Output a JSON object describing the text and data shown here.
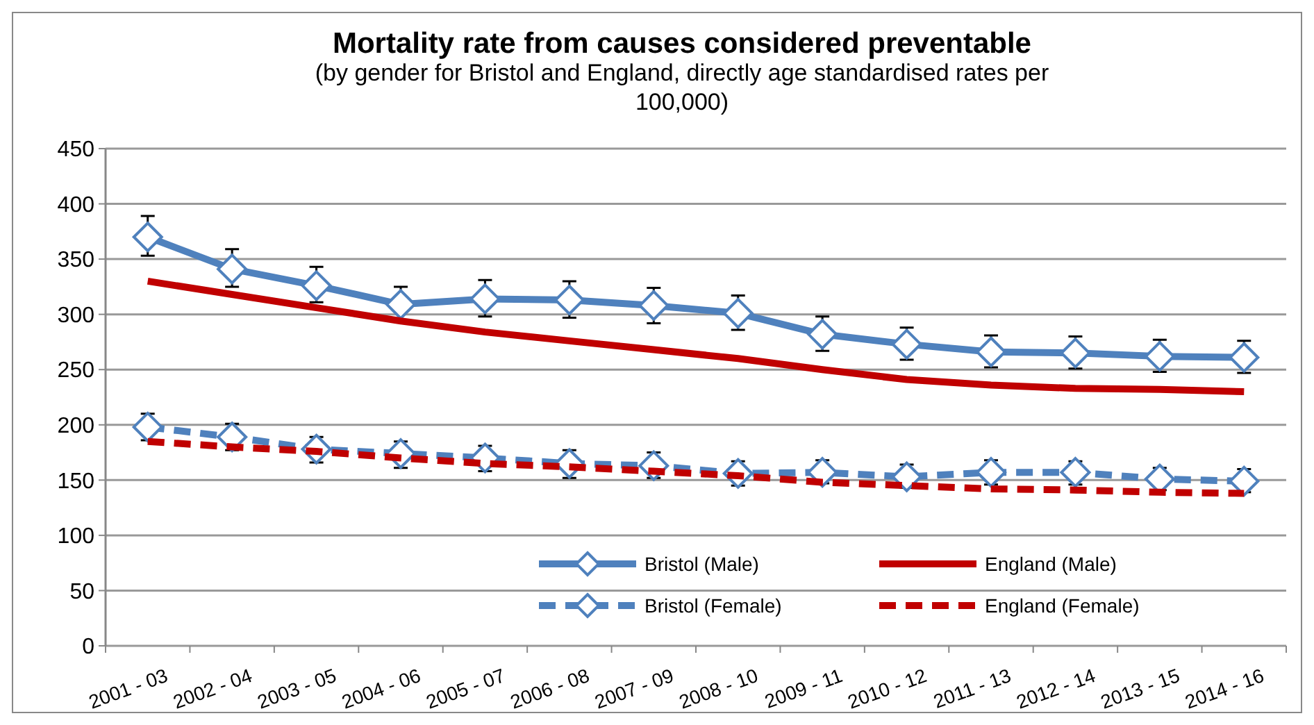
{
  "chart_data": {
    "type": "line",
    "title": "Mortality rate from causes considered preventable",
    "subtitle": "(by gender for Bristol and England, directly age standardised rates per 100,000)",
    "categories": [
      "2001 - 03",
      "2002 - 04",
      "2003 - 05",
      "2004 - 06",
      "2005 - 07",
      "2006 - 08",
      "2007 - 09",
      "2008 - 10",
      "2009 - 11",
      "2010 - 12",
      "2011 - 13",
      "2012 - 14",
      "2013 - 15",
      "2014 - 16"
    ],
    "ylim": [
      0,
      450
    ],
    "yticks": [
      0,
      50,
      100,
      150,
      200,
      250,
      300,
      350,
      400,
      450
    ],
    "grid": "y",
    "legend": "bottom right",
    "series": [
      {
        "name": "Bristol (Male)",
        "color": "#4f81bd",
        "marker": "diamond",
        "line_style": "solid",
        "values": [
          370,
          341,
          326,
          309,
          314,
          313,
          308,
          301,
          282,
          273,
          266,
          265,
          262,
          261
        ],
        "errors": [
          [
            353,
            389
          ],
          [
            325,
            359
          ],
          [
            311,
            343
          ],
          [
            293,
            325
          ],
          [
            298,
            331
          ],
          [
            297,
            330
          ],
          [
            292,
            324
          ],
          [
            286,
            317
          ],
          [
            267,
            298
          ],
          [
            259,
            288
          ],
          [
            252,
            281
          ],
          [
            251,
            280
          ],
          [
            248,
            277
          ],
          [
            247,
            276
          ]
        ]
      },
      {
        "name": "England (Male)",
        "color": "#c00000",
        "marker": "none",
        "line_style": "solid",
        "values": [
          330,
          318,
          306,
          294,
          284,
          276,
          268,
          260,
          250,
          241,
          236,
          233,
          232,
          230
        ]
      },
      {
        "name": "Bristol (Female)",
        "color": "#4f81bd",
        "marker": "diamond",
        "line_style": "dashed",
        "values": [
          198,
          189,
          178,
          174,
          170,
          165,
          163,
          156,
          157,
          153,
          157,
          157,
          151,
          149
        ],
        "errors": [
          [
            186,
            210
          ],
          [
            177,
            201
          ],
          [
            166,
            189
          ],
          [
            161,
            185
          ],
          [
            158,
            181
          ],
          [
            152,
            177
          ],
          [
            152,
            175
          ],
          [
            145,
            167
          ],
          [
            147,
            168
          ],
          [
            143,
            164
          ],
          [
            146,
            168
          ],
          [
            146,
            167
          ],
          [
            141,
            161
          ],
          [
            139,
            160
          ]
        ]
      },
      {
        "name": "England (Female)",
        "color": "#c00000",
        "marker": "none",
        "line_style": "dashed",
        "values": [
          185,
          180,
          176,
          170,
          165,
          162,
          158,
          154,
          148,
          145,
          142,
          141,
          139,
          138
        ]
      }
    ]
  }
}
